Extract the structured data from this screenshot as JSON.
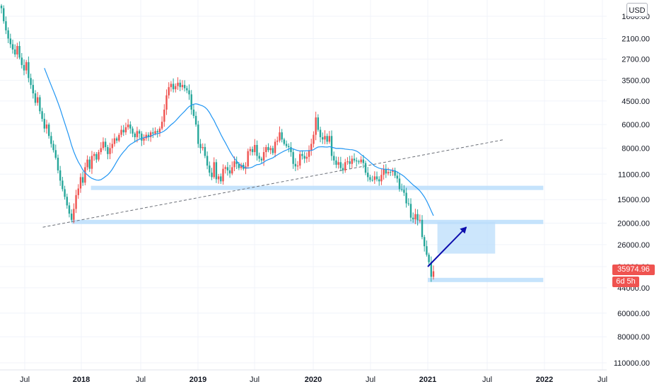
{
  "header": {
    "currency": "USD"
  },
  "badges": {
    "last_price": "35974.96",
    "countdown": "6d 5h"
  },
  "colors": {
    "up": "#26a69a",
    "down": "#ef5350",
    "ma": "#2196f3",
    "zone": "#bbdefb",
    "arrow": "#0d0dad"
  },
  "chart_data": {
    "type": "candlestick",
    "y_axis": {
      "inverted": true,
      "scale": "log",
      "range": [
        1300,
        135000
      ],
      "ticks": [
        "1600.00",
        "2100.00",
        "2700.00",
        "3500.00",
        "4500.00",
        "6000.00",
        "8000.00",
        "11000.00",
        "15000.00",
        "20000.00",
        "26000.00",
        "34000.00",
        "44000.00",
        "60000.00",
        "80000.00",
        "110000.00"
      ]
    },
    "x_axis": {
      "ticks": [
        "Jul",
        "2018",
        "Jul",
        "2019",
        "Jul",
        "2020",
        "Jul",
        "2021",
        "Jul",
        "2022",
        "Jul"
      ]
    },
    "closes": [
      1450,
      1700,
      1900,
      2100,
      2250,
      2400,
      2550,
      2300,
      2650,
      2900,
      3100,
      2800,
      3400,
      3700,
      4100,
      4600,
      4300,
      5100,
      5600,
      6300,
      6000,
      6900,
      7600,
      8200,
      9000,
      10500,
      11900,
      13200,
      14500,
      16100,
      17800,
      19200,
      16800,
      14200,
      13100,
      11400,
      12200,
      10100,
      9200,
      10300,
      8800,
      8600,
      9200,
      8400,
      8000,
      7400,
      7900,
      8600,
      8000,
      7600,
      7100,
      7300,
      6800,
      6400,
      6600,
      6200,
      6000,
      6300,
      6700,
      7000,
      6500,
      6700,
      7300,
      7100,
      6800,
      7000,
      6600,
      6700,
      6500,
      6600,
      6300,
      5800,
      5000,
      4200,
      3800,
      3650,
      3900,
      3750,
      3600,
      3800,
      3700,
      3850,
      3950,
      4150,
      5000,
      5400,
      6000,
      7600,
      8000,
      7900,
      8800,
      9900,
      10800,
      11400,
      9500,
      11700,
      11300,
      12000,
      10300,
      10100,
      10500,
      10900,
      10100,
      9400,
      9700,
      10200,
      9800,
      10300,
      10000,
      8300,
      8100,
      8400,
      7700,
      8800,
      9100,
      9300,
      8400,
      7900,
      8200,
      8000,
      8500,
      7400,
      7300,
      6600,
      7200,
      7600,
      7800,
      7900,
      8400,
      9700,
      10000,
      9900,
      8600,
      8800,
      9100,
      8900,
      8200,
      7600,
      6800,
      5500,
      6400,
      7000,
      7200,
      6900,
      7400,
      6900,
      8800,
      9300,
      9800,
      9500,
      10200,
      10500,
      9500,
      9400,
      9700,
      9100,
      9300,
      9400,
      9500,
      9200,
      9600,
      10800,
      11400,
      11800,
      11800,
      11300,
      11700,
      12000,
      11100,
      10300,
      10900,
      10700,
      10700,
      10500,
      11200,
      11600,
      13200,
      13300,
      13800,
      15700,
      15800,
      18700,
      19100,
      17900,
      19300,
      19200,
      23700,
      26500,
      29400,
      32200,
      38500,
      35974.96
    ],
    "moving_average": {
      "label": "",
      "period": 20
    },
    "annotations": {
      "trendline": {
        "from": [
          "2017-09",
          21000
        ],
        "to": [
          "2021-09",
          7200
        ],
        "style": "dashed"
      },
      "support_zones": [
        {
          "from": "2018-02",
          "to": "2022-01",
          "price": 13000
        },
        {
          "from": "2017-12",
          "to": "2022-01",
          "price": 19700
        },
        {
          "from": "2021-01",
          "to": "2022-01",
          "price": 40000
        }
      ],
      "target_box": {
        "from": "2021-02",
        "to": "2021-08",
        "price_range": [
          19700,
          29000
        ]
      },
      "arrow": {
        "from": [
          "2021-01",
          34000
        ],
        "to": [
          "2021-05",
          21000
        ]
      }
    }
  }
}
